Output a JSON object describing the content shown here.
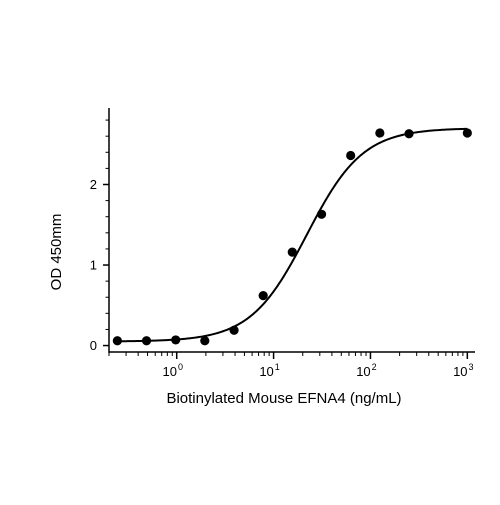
{
  "chart_data": {
    "type": "scatter",
    "xlabel": "Biotinylated Mouse EFNA4 (ng/mL)",
    "ylabel": "OD 450mm",
    "xscale": "log",
    "xlim": [
      0.2,
      1200
    ],
    "ylim": [
      -0.08,
      2.95
    ],
    "grid": false,
    "y_ticks": [
      0,
      1,
      2
    ],
    "y_tick_labels": [
      "0",
      "1",
      "2"
    ],
    "x_major_ticks": [
      1,
      10,
      100,
      1000
    ],
    "x_tick_labels": [
      {
        "base": "10",
        "exp": "0"
      },
      {
        "base": "10",
        "exp": "1"
      },
      {
        "base": "10",
        "exp": "2"
      },
      {
        "base": "10",
        "exp": "3"
      }
    ],
    "series": [
      {
        "marker": "circle",
        "color": "#000000",
        "points": [
          {
            "x": 0.244,
            "y": 0.06
          },
          {
            "x": 0.488,
            "y": 0.06
          },
          {
            "x": 0.977,
            "y": 0.07
          },
          {
            "x": 1.95,
            "y": 0.06
          },
          {
            "x": 3.91,
            "y": 0.19
          },
          {
            "x": 7.81,
            "y": 0.62
          },
          {
            "x": 15.6,
            "y": 1.16
          },
          {
            "x": 31.3,
            "y": 1.63
          },
          {
            "x": 62.5,
            "y": 2.36
          },
          {
            "x": 125,
            "y": 2.64
          },
          {
            "x": 250,
            "y": 2.63
          },
          {
            "x": 1000,
            "y": 2.64
          }
        ]
      }
    ],
    "fit": {
      "model": "4PL",
      "bottom": 0.05,
      "top": 2.7,
      "ec50": 22,
      "hill": 1.5,
      "color": "#000000"
    }
  }
}
